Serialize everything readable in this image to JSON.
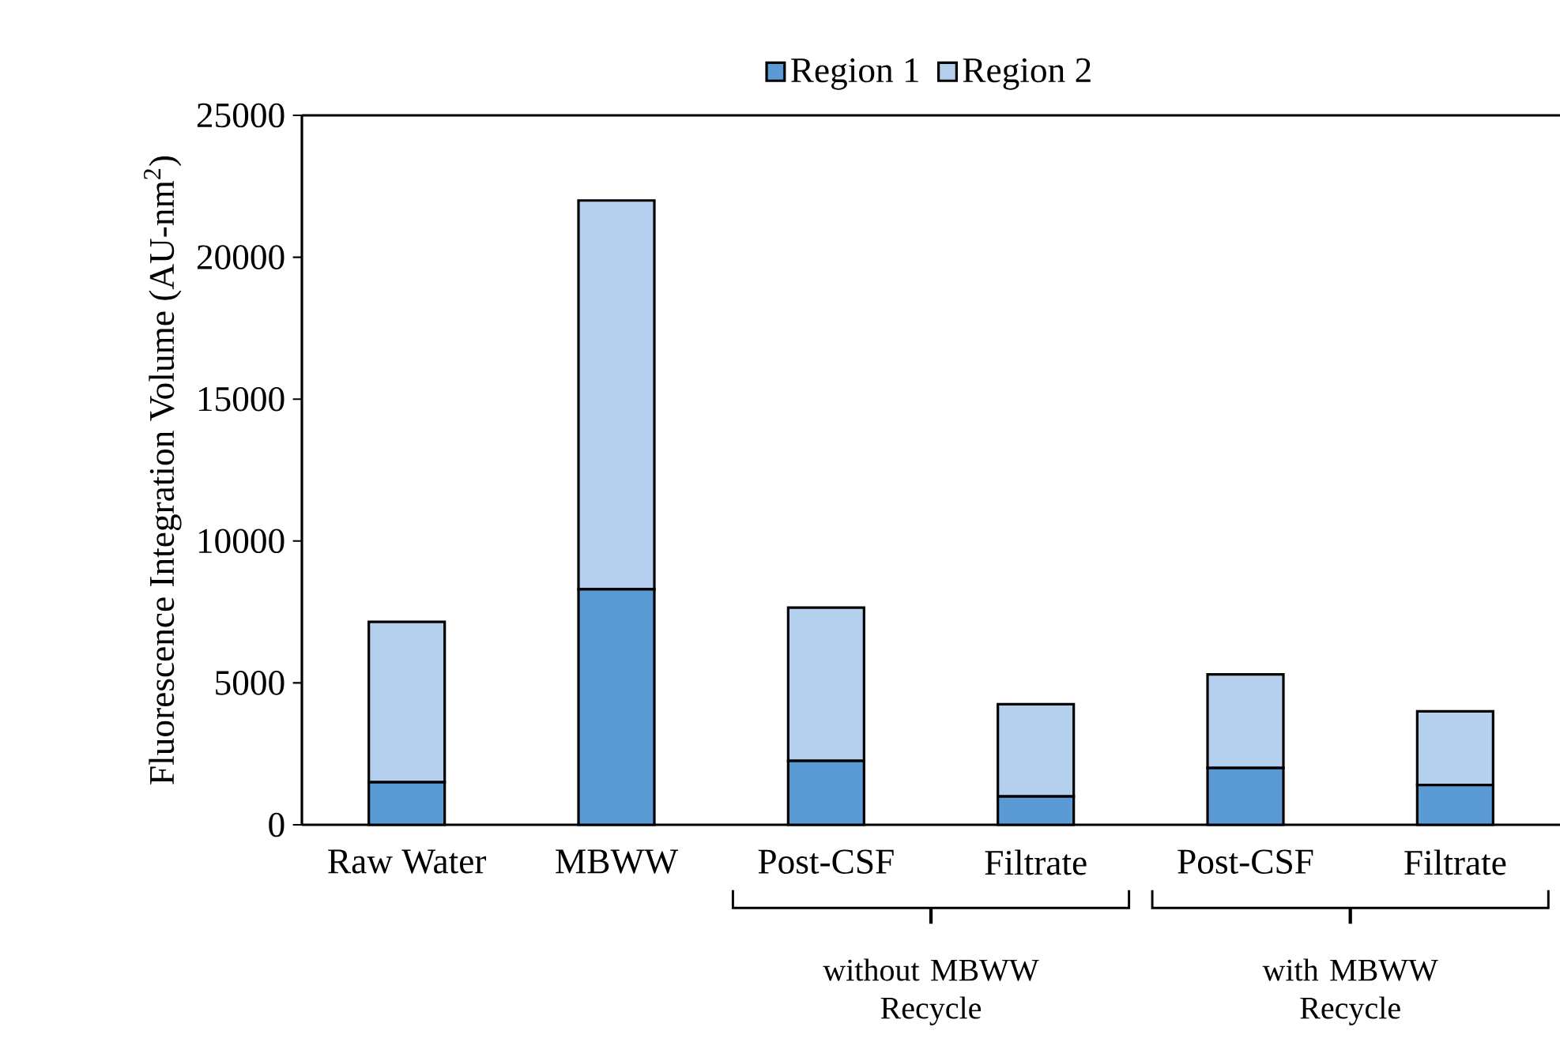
{
  "chart_data": {
    "type": "bar",
    "stacked": true,
    "ylabel": "Fluorescence Integration Volume (AU-nm$^{2}$)",
    "categories": [
      "Raw Water",
      "MBWW",
      "Post-CSF",
      "Filtrate",
      "Post-CSF",
      "Filtrate"
    ],
    "series": [
      {
        "name": "Region 1",
        "color": "#5b9bd5",
        "values": [
          1500,
          8300,
          2250,
          1000,
          2000,
          1400
        ]
      },
      {
        "name": "Region 2",
        "color": "#b4d0ee",
        "values": [
          5650,
          13700,
          5400,
          3250,
          3300,
          2600
        ]
      }
    ],
    "ylim": [
      0,
      25000
    ],
    "yticks": [
      0,
      5000,
      10000,
      15000,
      20000,
      25000
    ],
    "grid": false,
    "legend": "top",
    "annotations": [
      "without MBWW Recycle",
      "with MBWW Recycle"
    ]
  }
}
